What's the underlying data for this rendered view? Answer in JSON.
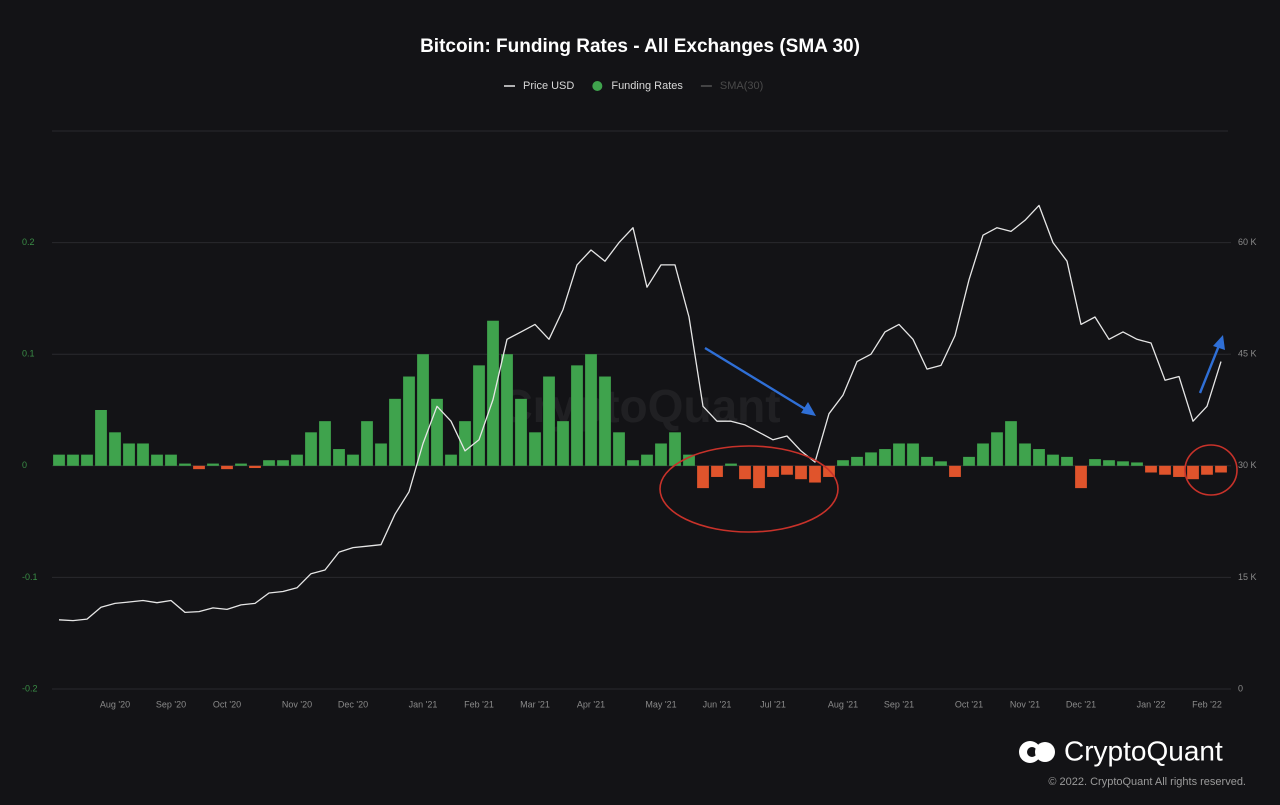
{
  "chart_data": {
    "type": "combo",
    "title": "Bitcoin: Funding Rates - All Exchanges (SMA 30)",
    "watermark": "CryptoQuant",
    "categories": [
      null,
      null,
      null,
      null,
      "Aug '20",
      null,
      null,
      null,
      "Sep '20",
      null,
      null,
      null,
      "Oct '20",
      null,
      null,
      null,
      null,
      "Nov '20",
      null,
      null,
      null,
      "Dec '20",
      null,
      null,
      null,
      null,
      "Jan '21",
      null,
      null,
      null,
      "Feb '21",
      null,
      null,
      null,
      "Mar '21",
      null,
      null,
      null,
      "Apr '21",
      null,
      null,
      null,
      null,
      "May '21",
      null,
      null,
      null,
      "Jun '21",
      null,
      null,
      null,
      "Jul '21",
      null,
      null,
      null,
      null,
      "Aug '21",
      null,
      null,
      null,
      "Sep '21",
      null,
      null,
      null,
      null,
      "Oct '21",
      null,
      null,
      null,
      "Nov '21",
      null,
      null,
      null,
      "Dec '21",
      null,
      null,
      null,
      null,
      "Jan '22",
      null,
      null,
      null,
      "Feb '22",
      null
    ],
    "series": [
      {
        "name": "Price USD",
        "type": "line",
        "axis": "y2",
        "color": "#e6e6e6",
        "values": [
          9300,
          9200,
          9400,
          11000,
          11500,
          11700,
          11900,
          11600,
          11900,
          10300,
          10400,
          10900,
          10700,
          11300,
          11500,
          12900,
          13100,
          13600,
          15500,
          16000,
          18400,
          19000,
          19200,
          19400,
          23500,
          26500,
          33000,
          38000,
          36000,
          32000,
          33500,
          38900,
          47000,
          48000,
          49000,
          47000,
          51000,
          57000,
          59000,
          57500,
          60000,
          62000,
          54000,
          57000,
          57000,
          50000,
          38000,
          36000,
          36000,
          35500,
          34500,
          33500,
          34000,
          32000,
          30500,
          37000,
          39500,
          44000,
          45000,
          48000,
          49000,
          47000,
          43000,
          43500,
          47500,
          55000,
          61000,
          62000,
          61500,
          63000,
          65000,
          60000,
          57500,
          49000,
          50000,
          47000,
          48000,
          47000,
          46500,
          41500,
          42000,
          36000,
          38000,
          44000
        ]
      },
      {
        "name": "Funding Rates",
        "type": "bar",
        "axis": "y",
        "color": "#3fa34d",
        "negative_color": "#e0542c",
        "values": [
          0.01,
          0.01,
          0.01,
          0.05,
          0.03,
          0.02,
          0.02,
          0.01,
          0.01,
          0.002,
          -0.003,
          0.002,
          -0.003,
          0.002,
          -0.002,
          0.005,
          0.005,
          0.01,
          0.03,
          0.04,
          0.015,
          0.01,
          0.04,
          0.02,
          0.06,
          0.08,
          0.1,
          0.06,
          0.01,
          0.04,
          0.09,
          0.13,
          0.1,
          0.06,
          0.03,
          0.08,
          0.04,
          0.09,
          0.1,
          0.08,
          0.03,
          0.005,
          0.01,
          0.02,
          0.03,
          0.01,
          -0.02,
          -0.01,
          0.002,
          -0.012,
          -0.02,
          -0.01,
          -0.008,
          -0.012,
          -0.015,
          -0.01,
          0.005,
          0.008,
          0.012,
          0.015,
          0.02,
          0.02,
          0.008,
          0.004,
          -0.01,
          0.008,
          0.02,
          0.03,
          0.04,
          0.02,
          0.015,
          0.01,
          0.008,
          -0.02,
          0.006,
          0.005,
          0.004,
          0.003,
          -0.006,
          -0.008,
          -0.01,
          -0.012,
          -0.008,
          -0.006
        ]
      },
      {
        "name": "SMA(30)",
        "type": "line",
        "visible": false,
        "color": "#555555"
      }
    ],
    "ylim": [
      -0.2,
      0.3
    ],
    "yticks": [
      -0.2,
      -0.1,
      0,
      0.1,
      0.2
    ],
    "y2lim": [
      0,
      75000
    ],
    "y2ticks": [
      0,
      {
        "value": 15000,
        "label": "15 K"
      },
      {
        "value": 30000,
        "label": "30 K"
      },
      {
        "value": 45000,
        "label": "45 K"
      },
      {
        "value": 60000,
        "label": "60 K"
      }
    ],
    "grid": true
  },
  "branding": {
    "logo": "CryptoQuant",
    "copyright": "© 2022. CryptoQuant All rights reserved."
  }
}
